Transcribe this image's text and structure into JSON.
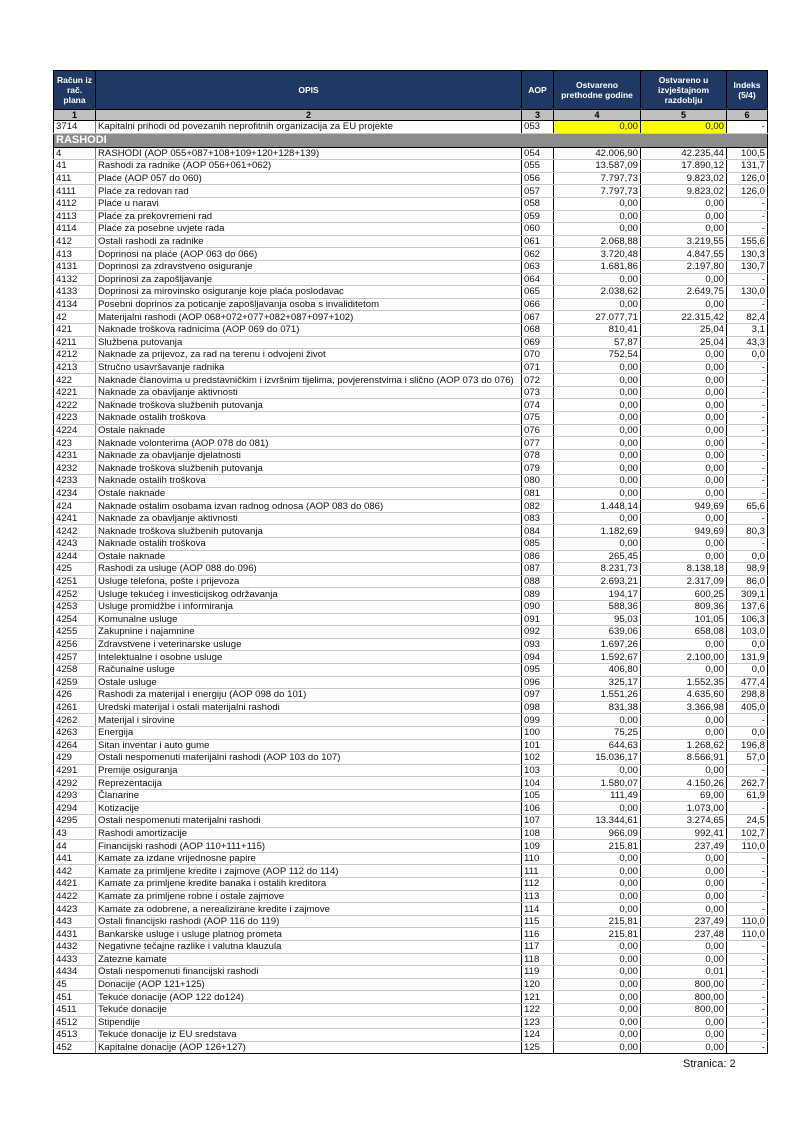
{
  "header": {
    "col1": "Račun iz rač. plana",
    "col2": "OPIS",
    "col3": "AOP",
    "col4": "Ostvareno prethodne godine",
    "col5": "Ostvareno u izvještajnom razdoblju",
    "col6": "Indeks (5/4)"
  },
  "col_numbers": [
    "1",
    "2",
    "3",
    "4",
    "5",
    "6"
  ],
  "top_row": [
    "3714",
    "Kapitalni prihodi od povezanih neprofitnih organizacija za EU projekte",
    "053",
    "0,00",
    "0,00",
    "-"
  ],
  "section": "RASHODI",
  "rows": [
    [
      "4",
      "RASHODI (AOP 055+087+108+109+120+128+139)",
      "054",
      "42.006,90",
      "42.235,44",
      "100,5"
    ],
    [
      "41",
      "Rashodi za radnike (AOP 056+061+062)",
      "055",
      "13.587,09",
      "17.890,12",
      "131,7"
    ],
    [
      "411",
      "Plaće (AOP 057 do 060)",
      "056",
      "7.797,73",
      "9.823,02",
      "126,0"
    ],
    [
      "4111",
      "Plaće za redovan rad",
      "057",
      "7.797,73",
      "9.823,02",
      "126,0"
    ],
    [
      "4112",
      "Plaće u naravi",
      "058",
      "0,00",
      "0,00",
      "-"
    ],
    [
      "4113",
      "Plaće za prekovremeni rad",
      "059",
      "0,00",
      "0,00",
      "-"
    ],
    [
      "4114",
      "Plaće za posebne uvjete rada",
      "060",
      "0,00",
      "0,00",
      "-"
    ],
    [
      "412",
      "Ostali rashodi za radnike",
      "061",
      "2.068,88",
      "3.219,55",
      "155,6"
    ],
    [
      "413",
      "Doprinosi na plaće (AOP 063 do 066)",
      "062",
      "3.720,48",
      "4.847,55",
      "130,3"
    ],
    [
      "4131",
      "Doprinosi za zdravstveno osiguranje",
      "063",
      "1.681,86",
      "2.197,80",
      "130,7"
    ],
    [
      "4132",
      "Doprinosi za zapošljavanje",
      "064",
      "0,00",
      "0,00",
      "-"
    ],
    [
      "4133",
      "Doprinosi za mirovinsko osiguranje koje plaća poslodavac",
      "065",
      "2.038,62",
      "2.649,75",
      "130,0"
    ],
    [
      "4134",
      "Posebni doprinos za poticanje zapošljavanja osoba s invaliditetom",
      "066",
      "0,00",
      "0,00",
      "-"
    ],
    [
      "42",
      "Materijalni rashodi (AOP 068+072+077+082+087+097+102)",
      "067",
      "27.077,71",
      "22.315,42",
      "82,4"
    ],
    [
      "421",
      "Naknade troškova radnicima (AOP 069 do 071)",
      "068",
      "810,41",
      "25,04",
      "3,1"
    ],
    [
      "4211",
      "Službena putovanja",
      "069",
      "57,87",
      "25,04",
      "43,3"
    ],
    [
      "4212",
      "Naknade za prijevoz, za rad na terenu i odvojeni život",
      "070",
      "752,54",
      "0,00",
      "0,0"
    ],
    [
      "4213",
      "Stručno usavršavanje radnika",
      "071",
      "0,00",
      "0,00",
      "-"
    ],
    [
      "422",
      "Naknade članovima u predstavničkim i izvršnim tijelima, povjerenstvima i slično (AOP 073 do 076)",
      "072",
      "0,00",
      "0,00",
      "-"
    ],
    [
      "4221",
      "Naknade za obavljanje aktivnosti",
      "073",
      "0,00",
      "0,00",
      "-"
    ],
    [
      "4222",
      "Naknade troškova službenih putovanja",
      "074",
      "0,00",
      "0,00",
      "-"
    ],
    [
      "4223",
      "Naknade ostalih troškova",
      "075",
      "0,00",
      "0,00",
      "-"
    ],
    [
      "4224",
      "Ostale naknade",
      "076",
      "0,00",
      "0,00",
      "-"
    ],
    [
      "423",
      "Naknade volonterima (AOP 078 do 081)",
      "077",
      "0,00",
      "0,00",
      "-"
    ],
    [
      "4231",
      "Naknade za obavljanje djelatnosti",
      "078",
      "0,00",
      "0,00",
      "-"
    ],
    [
      "4232",
      "Naknade troškova službenih putovanja",
      "079",
      "0,00",
      "0,00",
      "-"
    ],
    [
      "4233",
      "Naknade ostalih troškova",
      "080",
      "0,00",
      "0,00",
      "-"
    ],
    [
      "4234",
      "Ostale naknade",
      "081",
      "0,00",
      "0,00",
      "-"
    ],
    [
      "424",
      "Naknade ostalim osobama izvan radnog odnosa (AOP 083 do 086)",
      "082",
      "1.448,14",
      "949,69",
      "65,6"
    ],
    [
      "4241",
      "Naknade za obavljanje aktivnosti",
      "083",
      "0,00",
      "0,00",
      "-"
    ],
    [
      "4242",
      "Naknade troškova službenih putovanja",
      "084",
      "1.182,69",
      "949,69",
      "80,3"
    ],
    [
      "4243",
      "Naknade ostalih troškova",
      "085",
      "0,00",
      "0,00",
      "-"
    ],
    [
      "4244",
      "Ostale naknade",
      "086",
      "265,45",
      "0,00",
      "0,0"
    ],
    [
      "425",
      "Rashodi za usluge (AOP 088 do 096)",
      "087",
      "8.231,73",
      "8.138,18",
      "98,9"
    ],
    [
      "4251",
      "Usluge telefona, pošte i prijevoza",
      "088",
      "2.693,21",
      "2.317,09",
      "86,0"
    ],
    [
      "4252",
      "Usluge tekućeg i investicijskog održavanja",
      "089",
      "194,17",
      "600,25",
      "309,1"
    ],
    [
      "4253",
      "Usluge promidžbe i informiranja",
      "090",
      "588,36",
      "809,36",
      "137,6"
    ],
    [
      "4254",
      "Komunalne usluge",
      "091",
      "95,03",
      "101,05",
      "106,3"
    ],
    [
      "4255",
      "Zakupnine i najamnine",
      "092",
      "639,06",
      "658,08",
      "103,0"
    ],
    [
      "4256",
      "Zdravstvene i veterinarske usluge",
      "093",
      "1.697,26",
      "0,00",
      "0,0"
    ],
    [
      "4257",
      "Intelektualne i osobne usluge",
      "094",
      "1.592,67",
      "2.100,00",
      "131,9"
    ],
    [
      "4258",
      "Računalne usluge",
      "095",
      "406,80",
      "0,00",
      "0,0"
    ],
    [
      "4259",
      "Ostale usluge",
      "096",
      "325,17",
      "1.552,35",
      "477,4"
    ],
    [
      "426",
      "Rashodi za materijal i energiju (AOP 098 do 101)",
      "097",
      "1.551,26",
      "4.635,60",
      "298,8"
    ],
    [
      "4261",
      "Uredski materijal i ostali materijalni rashodi",
      "098",
      "831,38",
      "3.366,98",
      "405,0"
    ],
    [
      "4262",
      "Materijal i sirovine",
      "099",
      "0,00",
      "0,00",
      "-"
    ],
    [
      "4263",
      "Energija",
      "100",
      "75,25",
      "0,00",
      "0,0"
    ],
    [
      "4264",
      "Sitan inventar i auto gume",
      "101",
      "644,63",
      "1.268,62",
      "196,8"
    ],
    [
      "429",
      "Ostali nespomenuti materijalni rashodi (AOP 103 do 107)",
      "102",
      "15.036,17",
      "8.566,91",
      "57,0"
    ],
    [
      "4291",
      "Premije osiguranja",
      "103",
      "0,00",
      "0,00",
      "-"
    ],
    [
      "4292",
      "Reprezentacija",
      "104",
      "1.580,07",
      "4.150,26",
      "262,7"
    ],
    [
      "4293",
      "Članarine",
      "105",
      "111,49",
      "69,00",
      "61,9"
    ],
    [
      "4294",
      "Kotizacije",
      "106",
      "0,00",
      "1.073,00",
      "-"
    ],
    [
      "4295",
      "Ostali nespomenuti materijalni rashodi",
      "107",
      "13.344,61",
      "3.274,65",
      "24,5"
    ],
    [
      "43",
      "Rashodi amortizacije",
      "108",
      "966,09",
      "992,41",
      "102,7"
    ],
    [
      "44",
      "Financijski rashodi (AOP 110+111+115)",
      "109",
      "215,81",
      "237,49",
      "110,0"
    ],
    [
      "441",
      "Kamate za izdane vrijednosne papire",
      "110",
      "0,00",
      "0,00",
      "-"
    ],
    [
      "442",
      "Kamate za primljene kredite i zajmove (AOP 112 do 114)",
      "111",
      "0,00",
      "0,00",
      "-"
    ],
    [
      "4421",
      "Kamate za primljene kredite banaka i ostalih kreditora",
      "112",
      "0,00",
      "0,00",
      "-"
    ],
    [
      "4422",
      "Kamate za primljene robne i ostale zajmove",
      "113",
      "0,00",
      "0,00",
      "-"
    ],
    [
      "4423",
      "Kamate za odobrene, a nerealizirane kredite i zajmove",
      "114",
      "0,00",
      "0,00",
      "-"
    ],
    [
      "443",
      "Ostali financijski rashodi (AOP 116 do 119)",
      "115",
      "215,81",
      "237,49",
      "110,0"
    ],
    [
      "4431",
      "Bankarske usluge i usluge platnog prometa",
      "116",
      "215,81",
      "237,48",
      "110,0"
    ],
    [
      "4432",
      "Negativne tečajne razlike i valutna klauzula",
      "117",
      "0,00",
      "0,00",
      "-"
    ],
    [
      "4433",
      "Zatezne kamate",
      "118",
      "0,00",
      "0,00",
      "-"
    ],
    [
      "4434",
      "Ostali nespomenuti financijski rashodi",
      "119",
      "0,00",
      "0,01",
      "-"
    ],
    [
      "45",
      "Donacije (AOP 121+125)",
      "120",
      "0,00",
      "800,00",
      "-"
    ],
    [
      "451",
      "Tekuće donacije (AOP 122 do124)",
      "121",
      "0,00",
      "800,00",
      "-"
    ],
    [
      "4511",
      "Tekuće donacije",
      "122",
      "0,00",
      "800,00",
      "-"
    ],
    [
      "4512",
      "Stipendije",
      "123",
      "0,00",
      "0,00",
      "-"
    ],
    [
      "4513",
      "Tekuće donacije iz EU sredstava",
      "124",
      "0,00",
      "0,00",
      "-"
    ],
    [
      "452",
      "Kapitalne donacije (AOP 126+127)",
      "125",
      "0,00",
      "0,00",
      "-"
    ]
  ],
  "footer": "Stranica: 2",
  "colors": {
    "header_bg": "#1f3864",
    "highlight": "#ffff00",
    "section_bg": "#8c8c8c"
  }
}
